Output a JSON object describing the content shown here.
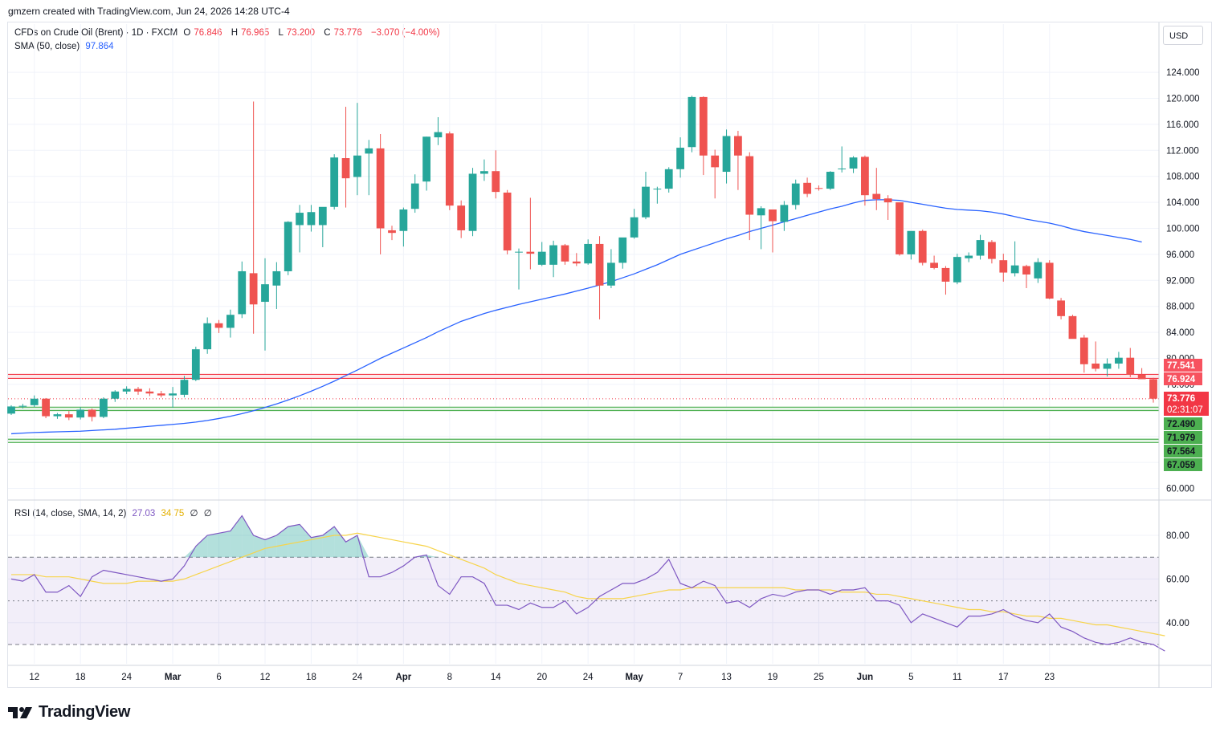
{
  "header": {
    "credit": "gmzern created with TradingView.com, Jun 24, 2026 14:28 UTC-4"
  },
  "legend": {
    "symbol": "CFDs on Crude Oil (Brent) · 1D · FXCM",
    "open_label": "O",
    "open": "76.846",
    "high_label": "H",
    "high": "76.965",
    "low_label": "L",
    "low": "73.200",
    "close_label": "C",
    "close": "73.776",
    "change": "−3.070 (−4.00%)",
    "sma_label": "SMA (50, close)",
    "sma_value": "97.864"
  },
  "rsi_legend": {
    "label": "RSI (14, close, SMA, 14, 2)",
    "rsi": "27.03",
    "rsi_ma": "34.75",
    "extra1": "∅",
    "extra2": "∅"
  },
  "currency": "USD",
  "brand": "TradingView",
  "price_tags": {
    "resistance_upper": "77.541",
    "resistance_lower": "76.924",
    "last_price": "73.776",
    "countdown": "02:31:07",
    "support_a_upper": "72.490",
    "support_a_lower": "71.979",
    "support_b_upper": "67.564",
    "support_b_lower": "67.059"
  },
  "colors": {
    "up": "#26a69a",
    "down": "#ef5350",
    "sma": "#2962ff",
    "rsi": "#7e57c2",
    "rsi_ma": "#f7d44a",
    "resistance": "#f23645",
    "support": "#4caf50"
  },
  "chart_data": [
    {
      "type": "candlestick",
      "title": "CFDs on Crude Oil (Brent)",
      "ylim": [
        60,
        124
      ],
      "y_ticks": [
        "60.000",
        "64.000",
        "68.000",
        "72.000",
        "76.000",
        "80.000",
        "84.000",
        "88.000",
        "92.000",
        "96.000",
        "100.000",
        "104.000",
        "108.000",
        "112.000",
        "116.000",
        "120.000",
        "124.000"
      ],
      "x_ticks": [
        "12",
        "18",
        "24",
        "Mar",
        "6",
        "12",
        "18",
        "24",
        "Apr",
        "8",
        "14",
        "20",
        "24",
        "May",
        "7",
        "13",
        "19",
        "25",
        "Jun",
        "5",
        "11",
        "17",
        "23"
      ],
      "resistance_zone": [
        76.924,
        77.541
      ],
      "support_zones": [
        [
          71.979,
          72.49
        ],
        [
          67.059,
          67.564
        ]
      ],
      "ohlc": [
        [
          71.5,
          72.8,
          71.3,
          72.6
        ],
        [
          72.6,
          73.0,
          72.3,
          72.7
        ],
        [
          72.8,
          74.3,
          72.5,
          73.8
        ],
        [
          73.8,
          73.9,
          70.8,
          71.1
        ],
        [
          71.1,
          71.6,
          70.7,
          71.4
        ],
        [
          71.4,
          71.9,
          70.5,
          70.9
        ],
        [
          70.9,
          72.5,
          70.6,
          72.1
        ],
        [
          72.1,
          72.3,
          70.3,
          71.0
        ],
        [
          71.0,
          74.0,
          70.8,
          73.8
        ],
        [
          73.8,
          75.1,
          73.3,
          74.9
        ],
        [
          74.9,
          75.7,
          74.5,
          75.3
        ],
        [
          75.3,
          75.6,
          74.4,
          74.9
        ],
        [
          74.9,
          75.4,
          74.2,
          74.6
        ],
        [
          74.6,
          75.0,
          74.0,
          74.3
        ],
        [
          74.3,
          75.6,
          72.4,
          74.6
        ],
        [
          74.4,
          77.3,
          74.0,
          76.7
        ],
        [
          76.7,
          81.8,
          76.5,
          81.4
        ],
        [
          81.4,
          86.3,
          80.7,
          85.4
        ],
        [
          85.4,
          85.9,
          83.9,
          84.7
        ],
        [
          84.7,
          87.5,
          83.2,
          86.7
        ],
        [
          86.8,
          94.9,
          86.2,
          93.4
        ],
        [
          93.1,
          119.5,
          83.8,
          88.3
        ],
        [
          88.7,
          95.4,
          81.2,
          91.4
        ],
        [
          91.2,
          94.8,
          87.6,
          93.4
        ],
        [
          93.4,
          101.1,
          92.8,
          101.0
        ],
        [
          100.5,
          103.6,
          96.3,
          102.4
        ],
        [
          100.5,
          103.6,
          99.5,
          102.5
        ],
        [
          100.5,
          103.2,
          97.1,
          103.3
        ],
        [
          103.3,
          111.4,
          102.9,
          110.9
        ],
        [
          110.8,
          118.7,
          103.2,
          107.7
        ],
        [
          107.9,
          119.3,
          105.1,
          111.2
        ],
        [
          111.5,
          113.6,
          105.1,
          112.3
        ],
        [
          112.3,
          114.5,
          96.0,
          100.0
        ],
        [
          99.7,
          100.4,
          98.2,
          99.3
        ],
        [
          99.6,
          103.2,
          97.2,
          102.9
        ],
        [
          103.0,
          108.3,
          102.4,
          106.9
        ],
        [
          107.2,
          114.1,
          105.8,
          114.1
        ],
        [
          114.0,
          117.1,
          112.8,
          114.8
        ],
        [
          114.6,
          114.9,
          102.8,
          103.5
        ],
        [
          103.5,
          104.3,
          98.5,
          99.7
        ],
        [
          99.6,
          109.3,
          98.8,
          108.4
        ],
        [
          108.4,
          110.6,
          107.3,
          108.8
        ],
        [
          108.8,
          112.0,
          104.6,
          105.6
        ],
        [
          105.5,
          105.9,
          96.0,
          96.6
        ],
        [
          96.3,
          96.9,
          90.6,
          96.4
        ],
        [
          96.4,
          104.7,
          93.7,
          96.1
        ],
        [
          94.4,
          97.9,
          94.2,
          96.4
        ],
        [
          94.4,
          98.1,
          92.5,
          97.4
        ],
        [
          97.4,
          97.6,
          94.4,
          94.9
        ],
        [
          94.9,
          96.2,
          94.2,
          94.6
        ],
        [
          94.6,
          98.3,
          94.4,
          97.6
        ],
        [
          97.6,
          98.8,
          86.0,
          91.2
        ],
        [
          91.2,
          96.8,
          90.8,
          94.7
        ],
        [
          94.7,
          98.2,
          93.8,
          98.6
        ],
        [
          98.6,
          103.0,
          98.4,
          101.7
        ],
        [
          101.7,
          108.7,
          101.4,
          106.4
        ],
        [
          106.1,
          106.4,
          103.8,
          106.1
        ],
        [
          106.1,
          109.4,
          105.5,
          109.1
        ],
        [
          109.1,
          114.0,
          107.8,
          112.4
        ],
        [
          112.5,
          120.4,
          111.7,
          120.2
        ],
        [
          120.2,
          120.3,
          108.2,
          111.2
        ],
        [
          111.2,
          112.1,
          104.6,
          109.4
        ],
        [
          108.7,
          115.2,
          106.9,
          114.2
        ],
        [
          114.2,
          115.0,
          105.9,
          111.2
        ],
        [
          111.1,
          111.7,
          98.2,
          102.1
        ],
        [
          102.0,
          103.4,
          96.8,
          103.1
        ],
        [
          102.9,
          102.7,
          96.3,
          101.1
        ],
        [
          101.0,
          104.2,
          99.6,
          103.6
        ],
        [
          103.6,
          107.5,
          102.9,
          106.9
        ],
        [
          107.0,
          107.8,
          104.8,
          105.3
        ],
        [
          106.2,
          106.6,
          105.8,
          106.1
        ],
        [
          106.1,
          108.8,
          105.9,
          108.7
        ],
        [
          109.1,
          112.6,
          108.6,
          109.2
        ],
        [
          109.2,
          111.1,
          108.5,
          110.9
        ],
        [
          111.0,
          111.2,
          103.5,
          105.1
        ],
        [
          105.3,
          109.3,
          102.8,
          104.5
        ],
        [
          104.6,
          105.1,
          101.3,
          104.0
        ],
        [
          104.0,
          103.6,
          95.8,
          96.0
        ],
        [
          96.0,
          99.5,
          95.2,
          99.6
        ],
        [
          99.6,
          99.8,
          94.3,
          94.7
        ],
        [
          94.7,
          95.8,
          93.7,
          93.9
        ],
        [
          93.9,
          94.2,
          89.8,
          91.8
        ],
        [
          91.7,
          96.1,
          91.4,
          95.6
        ],
        [
          95.4,
          96.3,
          94.8,
          95.8
        ],
        [
          95.8,
          99.0,
          95.2,
          98.2
        ],
        [
          97.9,
          98.2,
          94.6,
          95.3
        ],
        [
          95.1,
          96.1,
          91.8,
          93.2
        ],
        [
          93.1,
          98.0,
          92.6,
          94.3
        ],
        [
          94.2,
          94.4,
          90.8,
          92.9
        ],
        [
          92.3,
          95.4,
          91.6,
          94.8
        ],
        [
          94.7,
          95.1,
          89.1,
          89.2
        ],
        [
          88.9,
          89.3,
          86.0,
          86.5
        ],
        [
          86.5,
          86.7,
          83.2,
          83.0
        ],
        [
          83.2,
          83.6,
          77.8,
          79.1
        ],
        [
          79.2,
          82.6,
          78.0,
          78.4
        ],
        [
          78.4,
          80.0,
          77.2,
          79.2
        ],
        [
          79.2,
          81.0,
          78.4,
          80.1
        ],
        [
          80.1,
          81.6,
          77.1,
          77.5
        ],
        [
          77.5,
          78.5,
          77.2,
          76.8
        ],
        [
          76.8,
          77.0,
          73.2,
          73.8
        ]
      ],
      "sma": {
        "name": "SMA (50, close)",
        "start_index": 0,
        "values": [
          68.4,
          68.5,
          68.6,
          68.65,
          68.7,
          68.75,
          68.8,
          68.9,
          69.0,
          69.1,
          69.25,
          69.4,
          69.55,
          69.7,
          69.85,
          70.0,
          70.2,
          70.45,
          70.75,
          71.1,
          71.5,
          71.95,
          72.45,
          73.0,
          73.6,
          74.25,
          74.95,
          75.7,
          76.5,
          77.35,
          78.2,
          79.1,
          80.0,
          80.8,
          81.6,
          82.4,
          83.2,
          84.1,
          84.9,
          85.7,
          86.3,
          86.9,
          87.4,
          87.85,
          88.3,
          88.7,
          89.1,
          89.5,
          89.9,
          90.35,
          90.8,
          91.3,
          91.8,
          92.4,
          93.0,
          93.7,
          94.4,
          95.2,
          96.0,
          96.6,
          97.2,
          97.8,
          98.4,
          98.9,
          99.5,
          100.0,
          100.5,
          101.0,
          101.5,
          102.0,
          102.5,
          103.0,
          103.4,
          103.9,
          104.3,
          104.4,
          104.4,
          104.3,
          104.0,
          103.7,
          103.4,
          103.1,
          102.9,
          102.8,
          102.7,
          102.5,
          102.2,
          101.8,
          101.4,
          101.1,
          100.8,
          100.4,
          99.9,
          99.5,
          99.2,
          98.9,
          98.6,
          98.3,
          97.9
        ]
      }
    },
    {
      "type": "line",
      "title": "RSI (14, close, SMA, 14, 2)",
      "ylim": [
        20,
        90
      ],
      "y_ticks": [
        "40.00",
        "60.00",
        "80.00"
      ],
      "bands": [
        30,
        50,
        70
      ],
      "series": [
        {
          "name": "RSI",
          "values": [
            60,
            59,
            62,
            54,
            54,
            57,
            52,
            61,
            64,
            63,
            62,
            61,
            60,
            59,
            60,
            66,
            75,
            80,
            81,
            82,
            89,
            80,
            78,
            80,
            84,
            85,
            79,
            80,
            84,
            77,
            80,
            61,
            61,
            63,
            66,
            70,
            71,
            57,
            53,
            61,
            61,
            58,
            48,
            48,
            46,
            49,
            47,
            47,
            50,
            44,
            47,
            52,
            55,
            58,
            58,
            60,
            63,
            69,
            58,
            56,
            59,
            57,
            49,
            50,
            47,
            51,
            53,
            52,
            54,
            55,
            55,
            53,
            55,
            55,
            56,
            50,
            50,
            48,
            40,
            44,
            42,
            40,
            38,
            43,
            43,
            44,
            46,
            43,
            41,
            40,
            44,
            38,
            36,
            33,
            31,
            30,
            31,
            33,
            31,
            30,
            27
          ]
        },
        {
          "name": "RSI-based MA",
          "values": [
            62,
            62,
            62,
            61,
            61,
            61,
            60,
            59,
            58,
            58,
            58,
            59,
            59,
            59,
            59,
            60,
            62,
            64,
            66,
            68,
            70,
            72,
            74,
            75,
            76,
            77,
            78,
            79,
            80,
            80,
            81,
            80,
            79,
            78,
            77,
            76,
            75,
            73,
            71,
            69,
            67,
            65,
            62,
            60,
            58,
            57,
            56,
            55,
            54,
            52,
            51,
            51,
            51,
            51,
            52,
            53,
            54,
            55,
            55,
            56,
            56,
            56,
            56,
            56,
            56,
            56,
            56,
            56,
            55,
            55,
            55,
            55,
            54,
            54,
            54,
            53,
            53,
            52,
            51,
            50,
            49,
            48,
            47,
            46,
            46,
            45,
            45,
            44,
            43,
            43,
            42,
            42,
            41,
            40,
            39,
            39,
            38,
            37,
            36,
            35,
            34
          ]
        }
      ]
    }
  ]
}
